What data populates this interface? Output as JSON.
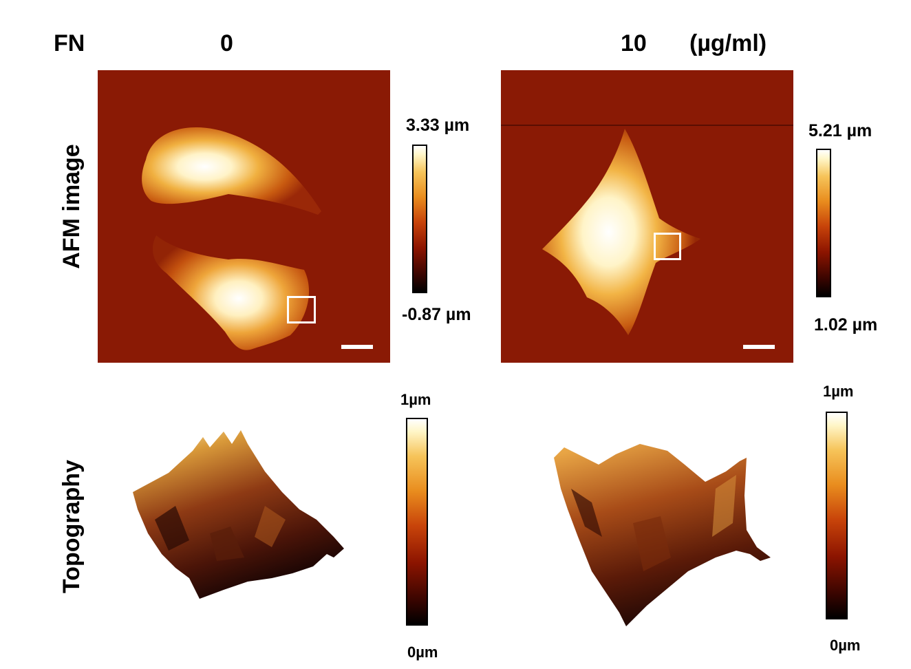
{
  "header": {
    "fn_label": "FN",
    "col1": "0",
    "col2": "10",
    "unit": "(µg/ml)"
  },
  "rows": {
    "afm": "AFM image",
    "topo": "Topography"
  },
  "afm_panels": [
    {
      "max_label": "3.33 µm",
      "min_label": "-0.87 µm"
    },
    {
      "max_label": "5.21 µm",
      "min_label": "1.02 µm"
    }
  ],
  "topo_panels": [
    {
      "max_label": "1µm",
      "min_label": "0µm"
    },
    {
      "max_label": "1µm",
      "min_label": "0µm"
    }
  ],
  "colors": {
    "background_afm": "#8a1a05",
    "cell_highlight": "#fff6d0",
    "roi_box": "#ffffff"
  }
}
